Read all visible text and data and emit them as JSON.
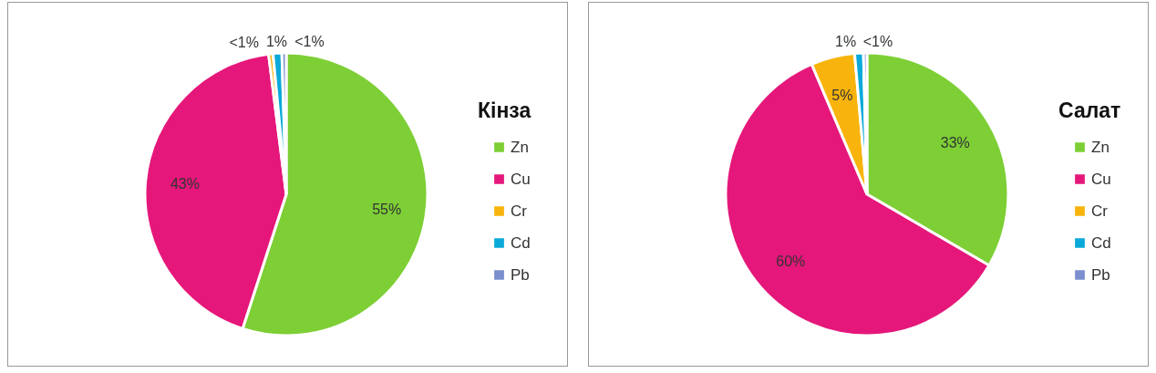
{
  "chart_data": [
    {
      "type": "pie",
      "title": "Кінза",
      "categories": [
        "Zn",
        "Cu",
        "Cr",
        "Cd",
        "Pb"
      ],
      "values": [
        55,
        43,
        0.5,
        1,
        0.5
      ],
      "colors": [
        "#7dcf35",
        "#e5177a",
        "#f8b40c",
        "#0aa9d9",
        "#7b8fcf"
      ],
      "value_labels": [
        "55%",
        "43%",
        "<1%",
        "1%",
        "<1%"
      ],
      "legend": "right"
    },
    {
      "type": "pie",
      "title": "Салат",
      "categories": [
        "Zn",
        "Cu",
        "Cr",
        "Cd",
        "Pb"
      ],
      "values": [
        33.4,
        60.2,
        5,
        1,
        0.4
      ],
      "colors": [
        "#7dcf35",
        "#e5177a",
        "#f8b40c",
        "#0aa9d9",
        "#7b8fcf"
      ],
      "value_labels": [
        "33%",
        "60%",
        "5%",
        "1%",
        "<1%"
      ],
      "legend": "right"
    }
  ]
}
